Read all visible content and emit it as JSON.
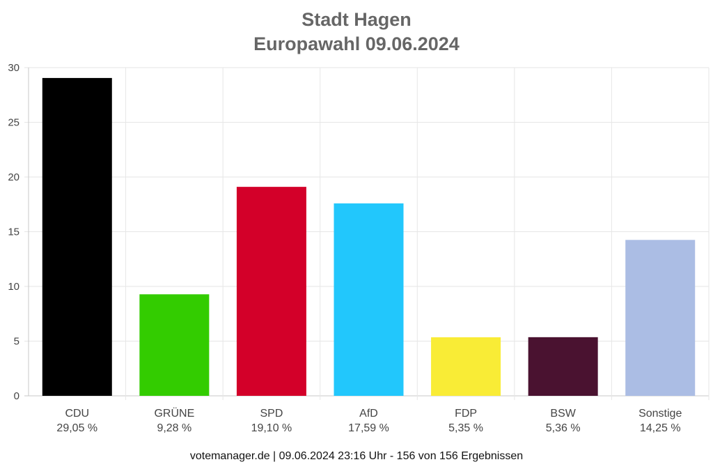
{
  "chart_data": {
    "type": "bar",
    "title": "Stadt Hagen",
    "subtitle": "Europawahl 09.06.2024",
    "categories": [
      "CDU",
      "GRÜNE",
      "SPD",
      "AfD",
      "FDP",
      "BSW",
      "Sonstige"
    ],
    "value_labels": [
      "29,05 %",
      "9,28 %",
      "19,10 %",
      "17,59 %",
      "5,35 %",
      "5,36 %",
      "14,25 %"
    ],
    "values": [
      29.05,
      9.28,
      19.1,
      17.59,
      5.35,
      5.36,
      14.25
    ],
    "colors": [
      "#000000",
      "#33cc00",
      "#d30029",
      "#22c7fc",
      "#f9ec36",
      "#4a1230",
      "#abbde4"
    ],
    "yticks": [
      "0",
      "5",
      "10",
      "15",
      "20",
      "25",
      "30"
    ],
    "ylim": [
      0,
      30
    ],
    "grid": true,
    "legend": "none"
  },
  "footer": "votemanager.de | 09.06.2024 23:16 Uhr - 156 von 156 Ergebnissen"
}
